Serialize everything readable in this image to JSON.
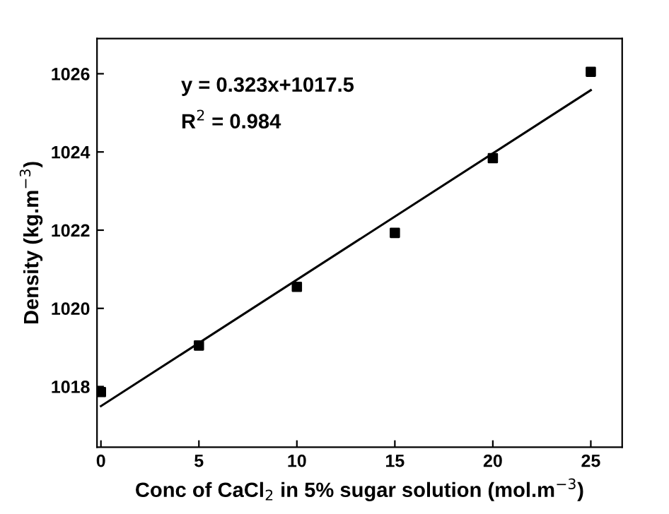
{
  "chart_data": {
    "type": "scatter",
    "xlabel": "Conc of CaCl$_{2}$ in 5% sugar solution (mol.m$^{−3}$)",
    "ylabel": "Density (kg.m$^{−3}$)",
    "annotations": [
      "y = 0.323x+1017.5",
      "R$^{2}$ = 0.984"
    ],
    "grid": false,
    "legend": false,
    "xlim": [
      -0.2,
      26.6
    ],
    "ylim": [
      1016.45,
      1026.9
    ],
    "xticks": [
      0,
      5,
      10,
      15,
      20,
      25
    ],
    "yticks": [
      1018,
      1020,
      1022,
      1024,
      1026
    ],
    "series": [
      {
        "marker": "square",
        "color": "#000000",
        "x": [
          0,
          5,
          10,
          15,
          20,
          25
        ],
        "values": [
          1017.86,
          1019.05,
          1020.55,
          1021.93,
          1023.84,
          1026.05
        ]
      },
      {
        "type": "line",
        "marker": "none",
        "color": "#000000",
        "x": [
          0,
          25
        ],
        "values": [
          1017.5,
          1025.58
        ]
      }
    ]
  }
}
